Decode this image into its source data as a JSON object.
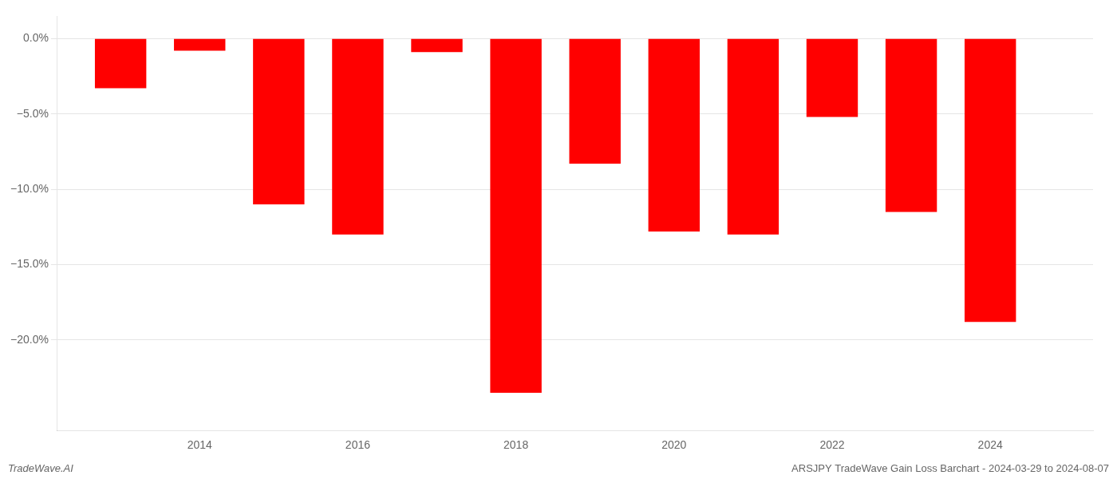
{
  "chart_data": {
    "type": "bar",
    "x": [
      2013,
      2014,
      2015,
      2016,
      2017,
      2018,
      2019,
      2020,
      2021,
      2022,
      2023,
      2024
    ],
    "values": [
      -3.3,
      -0.8,
      -11.0,
      -13.0,
      -0.9,
      -23.5,
      -8.3,
      -12.8,
      -13.0,
      -5.2,
      -11.5,
      -18.8
    ],
    "color": "#ff0000",
    "xlim": [
      2012.2,
      2025.3
    ],
    "xticks": [
      2014,
      2016,
      2018,
      2020,
      2022,
      2024
    ],
    "ylim": [
      -26,
      1.5
    ],
    "yticks": [
      {
        "value": 0.0,
        "label": "0.0%"
      },
      {
        "value": -5.0,
        "label": "−5.0%"
      },
      {
        "value": -10.0,
        "label": "−10.0%"
      },
      {
        "value": -15.0,
        "label": "−15.0%"
      },
      {
        "value": -20.0,
        "label": "−20.0%"
      }
    ],
    "grid": true,
    "annotations": [
      "TradeWave.AI",
      "ARSJPY TradeWave Gain Loss Barchart - 2024-03-29 to 2024-08-07"
    ]
  }
}
